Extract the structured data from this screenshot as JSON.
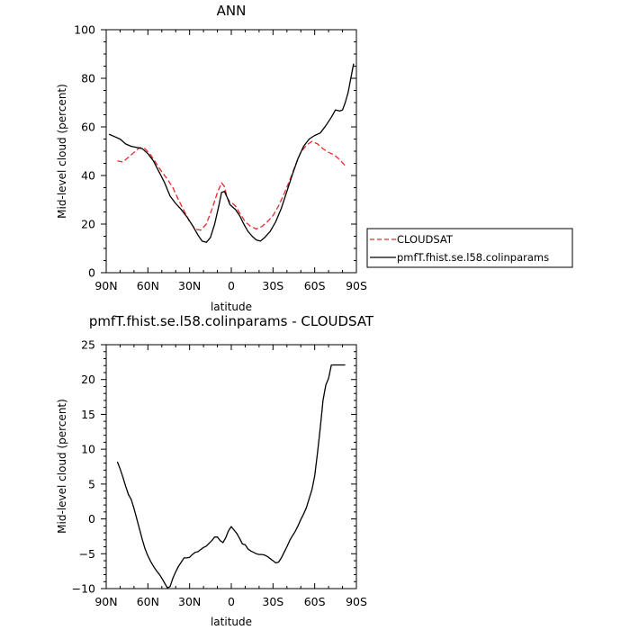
{
  "chart_data": [
    {
      "type": "line",
      "title": "ANN",
      "xlabel": "latitude",
      "ylabel": "Mid-level cloud (percent)",
      "xlim": [
        90,
        -90
      ],
      "ylim": [
        0,
        100
      ],
      "xticks": [
        90,
        60,
        30,
        0,
        -30,
        -60,
        -90
      ],
      "xtick_labels": [
        "90N",
        "60N",
        "30N",
        "0",
        "30S",
        "60S",
        "90S"
      ],
      "yticks": [
        0,
        20,
        40,
        60,
        80,
        100
      ],
      "ytick_labels": [
        "0",
        "20",
        "40",
        "60",
        "80",
        "100"
      ],
      "legend": "right",
      "series": [
        {
          "name": "CLOUDSAT",
          "color": "#e8292a",
          "dash": "dashed",
          "x": [
            82,
            78,
            74,
            70,
            66,
            62,
            58,
            54,
            50,
            46,
            42,
            38,
            34,
            30,
            26,
            22,
            18,
            14,
            10,
            7,
            5,
            3,
            1,
            -1,
            -3,
            -6,
            -10,
            -14,
            -18,
            -22,
            -26,
            -30,
            -34,
            -38,
            -42,
            -46,
            -50,
            -54,
            -58,
            -62,
            -66,
            -70,
            -74,
            -78,
            -82
          ],
          "y": [
            46,
            45.5,
            47.5,
            49.5,
            51.5,
            51,
            48.5,
            45,
            41.5,
            38.5,
            35,
            30,
            25.5,
            21,
            18,
            17.5,
            20,
            26,
            33,
            37,
            35.5,
            31,
            29,
            28.5,
            27.5,
            24.5,
            21,
            19,
            18,
            19,
            21,
            23.5,
            27.5,
            32.5,
            38,
            44,
            49.5,
            52.5,
            54,
            53,
            51,
            49.5,
            48.5,
            46.5,
            44
          ]
        },
        {
          "name": "pmfT.fhist.se.l58.colinparams",
          "color": "#000000",
          "dash": "solid",
          "x": [
            88,
            84,
            80,
            76,
            72,
            68,
            64,
            60,
            56,
            52,
            48,
            44,
            40,
            36,
            32,
            28,
            24,
            21,
            18,
            15,
            12,
            9,
            7,
            5,
            3,
            1,
            -1,
            -3,
            -6,
            -9,
            -12,
            -15,
            -18,
            -21,
            -24,
            -28,
            -32,
            -36,
            -40,
            -44,
            -48,
            -52,
            -56,
            -60,
            -64,
            -68,
            -72,
            -75,
            -78,
            -80,
            -82,
            -84,
            -86,
            -88
          ],
          "y": [
            57,
            56,
            55,
            53,
            52,
            51.5,
            51,
            49,
            46,
            41.5,
            37,
            31.5,
            28.5,
            26,
            23,
            19.5,
            15.5,
            13,
            12.5,
            14.5,
            20,
            27.5,
            33,
            33.5,
            31,
            28,
            27,
            26,
            23.5,
            20,
            17,
            15,
            13.5,
            13,
            14.5,
            17,
            21,
            26.5,
            33.5,
            40.5,
            47,
            52,
            55,
            56.5,
            57.5,
            60.5,
            64,
            67,
            66.5,
            67,
            70,
            74,
            80,
            86
          ]
        }
      ]
    },
    {
      "type": "line",
      "title": "pmfT.fhist.se.l58.colinparams - CLOUDSAT",
      "xlabel": "latitude",
      "ylabel": "Mid-level cloud (percent)",
      "xlim": [
        90,
        -90
      ],
      "ylim": [
        -10,
        25
      ],
      "xticks": [
        90,
        60,
        30,
        0,
        -30,
        -60,
        -90
      ],
      "xtick_labels": [
        "90N",
        "60N",
        "30N",
        "0",
        "30S",
        "60S",
        "90S"
      ],
      "yticks": [
        -10,
        -5,
        0,
        5,
        10,
        15,
        20,
        25
      ],
      "ytick_labels": [
        "−10",
        "−5",
        "0",
        "5",
        "10",
        "15",
        "20",
        "25"
      ],
      "series": [
        {
          "color": "#000000",
          "dash": "solid",
          "x": [
            82,
            80,
            78,
            76,
            74,
            72,
            70,
            68,
            66,
            64,
            62,
            60,
            58,
            56,
            54,
            52,
            50,
            48,
            46,
            44,
            42,
            40,
            38,
            36,
            34,
            32,
            30,
            28,
            26,
            24,
            22,
            20,
            18,
            16,
            14,
            12,
            10,
            8,
            6,
            4,
            2,
            0,
            -2,
            -4,
            -6,
            -8,
            -10,
            -12,
            -14,
            -16,
            -18,
            -20,
            -22,
            -24,
            -26,
            -28,
            -30,
            -32,
            -34,
            -36,
            -38,
            -40,
            -42,
            -44,
            -46,
            -48,
            -50,
            -52,
            -54,
            -56,
            -58,
            -60,
            -62,
            -64,
            -66,
            -68,
            -70,
            -72,
            -74,
            -76,
            -78,
            -80,
            -82
          ],
          "y": [
            8.2,
            7.2,
            6,
            4.7,
            3.5,
            2.8,
            1.5,
            0,
            -1.5,
            -3,
            -4.3,
            -5.3,
            -6.1,
            -6.8,
            -7.4,
            -7.9,
            -8.5,
            -9.2,
            -9.9,
            -9.7,
            -8.5,
            -7.6,
            -6.8,
            -6.2,
            -5.6,
            -5.6,
            -5.5,
            -5.1,
            -4.8,
            -4.7,
            -4.4,
            -4.1,
            -3.9,
            -3.5,
            -3.1,
            -2.6,
            -2.6,
            -3.1,
            -3.4,
            -2.7,
            -1.7,
            -1.1,
            -1.6,
            -2.1,
            -2.8,
            -3.6,
            -3.7,
            -4.3,
            -4.6,
            -4.8,
            -5,
            -5.1,
            -5.1,
            -5.2,
            -5.4,
            -5.7,
            -6,
            -6.3,
            -6.2,
            -5.6,
            -4.8,
            -4,
            -3.1,
            -2.4,
            -1.8,
            -1,
            -0.1,
            0.7,
            1.6,
            2.9,
            4.2,
            6.2,
            9.5,
            13,
            17,
            19.2,
            20.2,
            22.1,
            22.1,
            22.1,
            22.1,
            22.1,
            22.1
          ]
        }
      ]
    }
  ]
}
